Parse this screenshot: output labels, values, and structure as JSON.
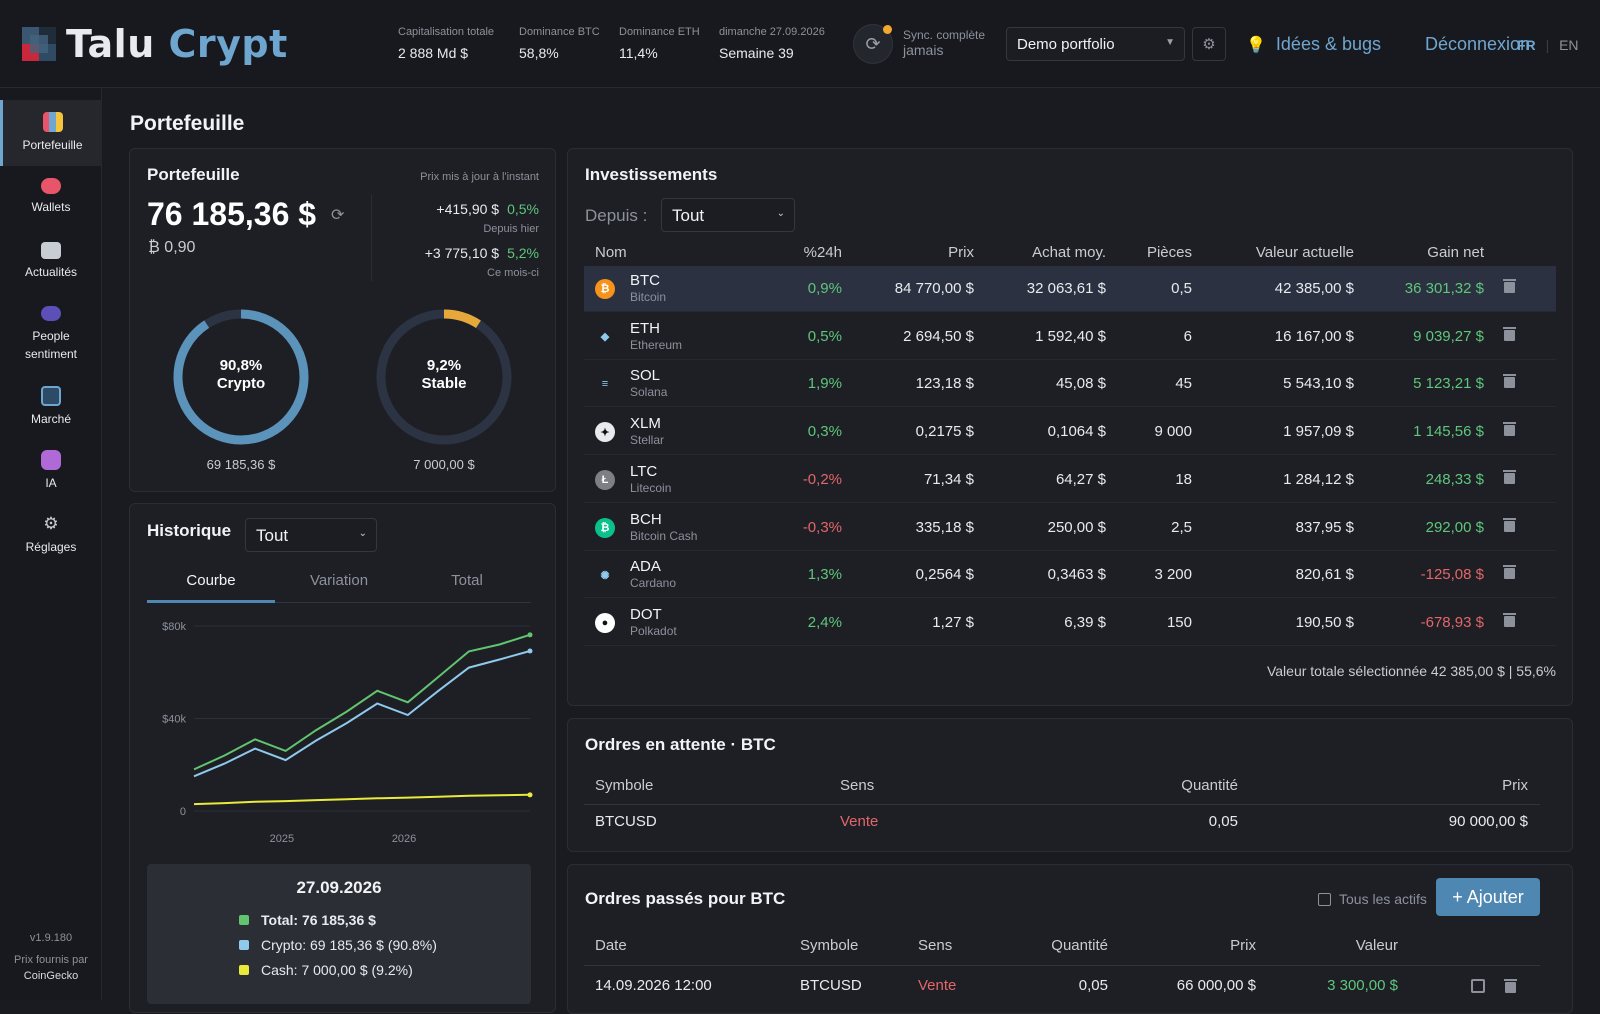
{
  "header": {
    "logo_part1": "Talu",
    "logo_part2": "Crypt",
    "stats": [
      {
        "label": "Capitalisation totale",
        "value": "2 888 Md $"
      },
      {
        "label": "Dominance BTC",
        "value": "58,8%"
      },
      {
        "label": "Dominance ETH",
        "value": "11,4%"
      },
      {
        "label": "dimanche 27.09.2026",
        "value": "Semaine 39"
      }
    ],
    "sync_label": "Sync. complète",
    "sync_value": "jamais",
    "portfolio_select": "Demo portfolio",
    "ideas": "Idées & bugs",
    "logout": "Déconnexion",
    "lang_fr": "FR",
    "lang_sep": "|",
    "lang_en": "EN"
  },
  "sidebar": {
    "items": [
      {
        "label": "Portefeuille",
        "icon": "portfolio-icon",
        "color": "#6fa6cf"
      },
      {
        "label": "Wallets",
        "icon": "wallet-icon",
        "color": "#e8556a"
      },
      {
        "label": "Actualités",
        "icon": "news-icon",
        "color": "#c8ccd3"
      },
      {
        "label": "People sentiment",
        "icon": "people-icon",
        "color": "#7b6ad8"
      },
      {
        "label": "Marché",
        "icon": "chart-icon",
        "color": "#6fa6cf"
      },
      {
        "label": "IA",
        "icon": "robot-icon",
        "color": "#b06ad8"
      },
      {
        "label": "Réglages",
        "icon": "gear-icon",
        "color": "#c8ccd3"
      }
    ],
    "version": "v1.9.180",
    "credit": "Prix fournis par",
    "credit_source": "CoinGecko"
  },
  "page_title": "Portefeuille",
  "portfolio": {
    "title": "Portefeuille",
    "updated": "Prix mis à jour à l'instant",
    "total": "76 185,36 $",
    "btc_equiv": "₿ 0,90",
    "change_day_value": "+415,90 $",
    "change_day_pct": "0,5%",
    "change_day_label": "Depuis hier",
    "change_month_value": "+3 775,10 $",
    "change_month_pct": "5,2%",
    "change_month_label": "Ce mois-ci",
    "crypto_pct": "90,8%",
    "crypto_label": "Crypto",
    "crypto_value": "69 185,36 $",
    "crypto_share": 0.908,
    "stable_pct": "9,2%",
    "stable_label": "Stable",
    "stable_value": "7 000,00 $",
    "stable_share": 0.092,
    "colors": {
      "crypto": "#5b93bb",
      "stable": "#e6a83a",
      "track": "#2c3444"
    }
  },
  "history": {
    "title": "Historique",
    "range": "Tout",
    "tabs": [
      "Courbe",
      "Variation",
      "Total"
    ],
    "tooltip_date": "27.09.2026",
    "tooltip_total": "Total: 76 185,36 $",
    "tooltip_crypto": "Crypto: 69 185,36 $ (90.8%)",
    "tooltip_cash": "Cash: 7 000,00 $ (9.2%)"
  },
  "chart_data": {
    "type": "line",
    "x": [
      "2024-10",
      "2024-12",
      "2025-02",
      "2025-04",
      "2025-06",
      "2025-08",
      "2025-10",
      "2025-12",
      "2026-02",
      "2026-04",
      "2026-06",
      "2026-09"
    ],
    "xticks": [
      "2025",
      "2026"
    ],
    "yticks": [
      "$80k",
      "$40k",
      "0"
    ],
    "ylim": [
      0,
      80000
    ],
    "series": [
      {
        "name": "Total",
        "color": "#62c46f",
        "values": [
          18000,
          24000,
          31000,
          26000,
          35000,
          43000,
          52000,
          47000,
          58000,
          69000,
          72000,
          76185
        ]
      },
      {
        "name": "Crypto",
        "color": "#8fc9ec",
        "values": [
          15000,
          20500,
          27000,
          22000,
          30500,
          38000,
          46500,
          41500,
          52000,
          62000,
          65500,
          69185
        ]
      },
      {
        "name": "Cash",
        "color": "#eaea3a",
        "values": [
          3000,
          3400,
          4000,
          4300,
          4700,
          5100,
          5500,
          5800,
          6200,
          6600,
          6800,
          7000
        ]
      }
    ]
  },
  "investments": {
    "title": "Investissements",
    "since_label": "Depuis :",
    "since_value": "Tout",
    "headers": [
      "Nom",
      "%24h",
      "Prix",
      "Achat moy.",
      "Pièces",
      "Valeur actuelle",
      "Gain net"
    ],
    "rows": [
      {
        "sym": "BTC",
        "name": "Bitcoin",
        "pct": "0,9%",
        "price": "84 770,00 $",
        "avg": "32 063,61 $",
        "qty": "0,5",
        "value": "42 385,00 $",
        "gain": "36 301,32 $",
        "pct_pos": true,
        "gain_pos": true,
        "icon_color": "#f7931a",
        "glyph": "₿"
      },
      {
        "sym": "ETH",
        "name": "Ethereum",
        "pct": "0,5%",
        "price": "2 694,50 $",
        "avg": "1 592,40 $",
        "qty": "6",
        "value": "16 167,00 $",
        "gain": "9 039,27 $",
        "pct_pos": true,
        "gain_pos": true,
        "icon_color": "#1d1f25",
        "glyph": "◆"
      },
      {
        "sym": "SOL",
        "name": "Solana",
        "pct": "1,9%",
        "price": "123,18 $",
        "avg": "45,08 $",
        "qty": "45",
        "value": "5 543,10 $",
        "gain": "5 123,21 $",
        "pct_pos": true,
        "gain_pos": true,
        "icon_color": "#1d1f25",
        "glyph": "≡"
      },
      {
        "sym": "XLM",
        "name": "Stellar",
        "pct": "0,3%",
        "price": "0,2175 $",
        "avg": "0,1064 $",
        "qty": "9 000",
        "value": "1 957,09 $",
        "gain": "1 145,56 $",
        "pct_pos": true,
        "gain_pos": true,
        "icon_color": "#e8eaee",
        "glyph": "✦"
      },
      {
        "sym": "LTC",
        "name": "Litecoin",
        "pct": "-0,2%",
        "price": "71,34 $",
        "avg": "64,27 $",
        "qty": "18",
        "value": "1 284,12 $",
        "gain": "248,33 $",
        "pct_pos": false,
        "gain_pos": true,
        "icon_color": "#7d7f84",
        "glyph": "Ł"
      },
      {
        "sym": "BCH",
        "name": "Bitcoin Cash",
        "pct": "-0,3%",
        "price": "335,18 $",
        "avg": "250,00 $",
        "qty": "2,5",
        "value": "837,95 $",
        "gain": "292,00 $",
        "pct_pos": false,
        "gain_pos": true,
        "icon_color": "#0ac18e",
        "glyph": "₿"
      },
      {
        "sym": "ADA",
        "name": "Cardano",
        "pct": "1,3%",
        "price": "0,2564 $",
        "avg": "0,3463 $",
        "qty": "3 200",
        "value": "820,61 $",
        "gain": "-125,08 $",
        "pct_pos": true,
        "gain_pos": false,
        "icon_color": "#1d1f25",
        "glyph": "✺"
      },
      {
        "sym": "DOT",
        "name": "Polkadot",
        "pct": "2,4%",
        "price": "1,27 $",
        "avg": "6,39 $",
        "qty": "150",
        "value": "190,50 $",
        "gain": "-678,93 $",
        "pct_pos": true,
        "gain_pos": false,
        "icon_color": "#ffffff",
        "glyph": "●"
      }
    ],
    "total_selected": "Valeur totale sélectionnée 42 385,00 $ | 55,6%"
  },
  "pending": {
    "title": "Ordres en attente · BTC",
    "headers": [
      "Symbole",
      "Sens",
      "Quantité",
      "Prix"
    ],
    "row": {
      "symbol": "BTCUSD",
      "side": "Vente",
      "qty": "0,05",
      "price": "90 000,00 $"
    }
  },
  "past": {
    "title": "Ordres passés pour BTC",
    "all_assets": "Tous les actifs",
    "add": "+ Ajouter",
    "headers": [
      "Date",
      "Symbole",
      "Sens",
      "Quantité",
      "Prix",
      "Valeur"
    ],
    "row": {
      "date": "14.09.2026 12:00",
      "symbol": "BTCUSD",
      "side": "Vente",
      "qty": "0,05",
      "price": "66 000,00 $",
      "value": "3 300,00 $"
    }
  }
}
